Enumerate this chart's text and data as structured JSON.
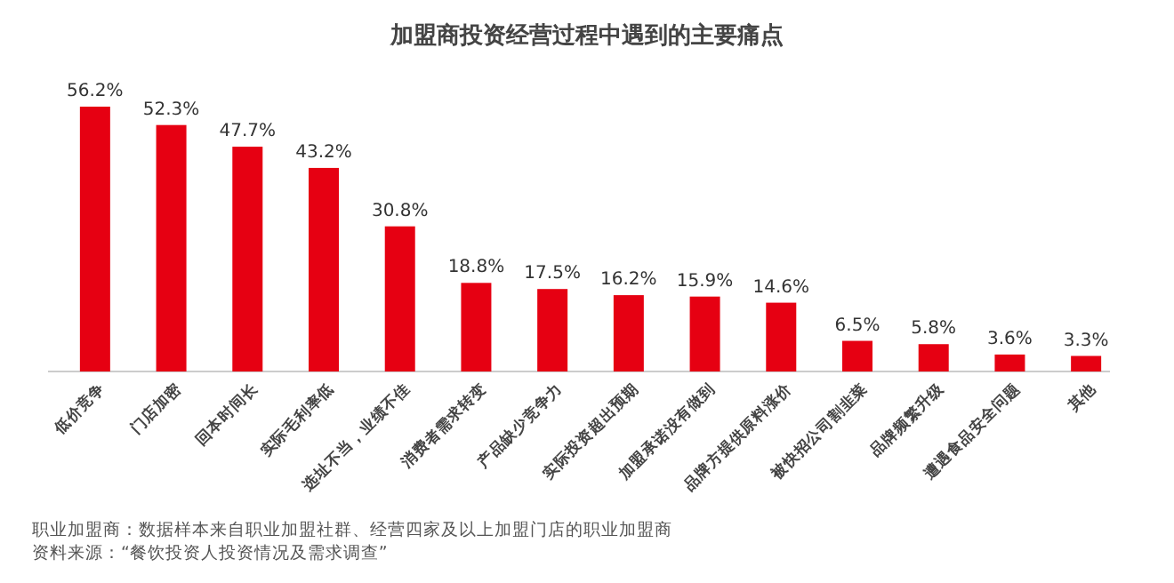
{
  "chart_data": {
    "type": "bar",
    "title": "加盟商投资经营过程中遇到的主要痛点",
    "categories": [
      "低价竞争",
      "门店加密",
      "回本时间长",
      "实际毛利率低",
      "选址不当，业绩不佳",
      "消费者需求转变",
      "产品缺少竞争力",
      "实际投资超出预期",
      "加盟承诺没有做到",
      "品牌方提供原料涨价",
      "被快招公司割韭菜",
      "品牌频繁升级",
      "遭遇食品安全问题",
      "其他"
    ],
    "values": [
      56.2,
      52.3,
      47.7,
      43.2,
      30.8,
      18.8,
      17.5,
      16.2,
      15.9,
      14.6,
      6.5,
      5.8,
      3.6,
      3.3
    ],
    "value_labels": [
      "56.2%",
      "52.3%",
      "47.7%",
      "43.2%",
      "30.8%",
      "18.8%",
      "17.5%",
      "16.2%",
      "15.9%",
      "14.6%",
      "6.5%",
      "5.8%",
      "3.6%",
      "3.3%"
    ],
    "color": "#e60012",
    "annotations": [
      "职业加盟商：数据样本来自职业加盟社群、经营四家及以上加盟门店的职业加盟商",
      "资料来源：“餐饮投资人投资情况及需求调查”"
    ]
  }
}
